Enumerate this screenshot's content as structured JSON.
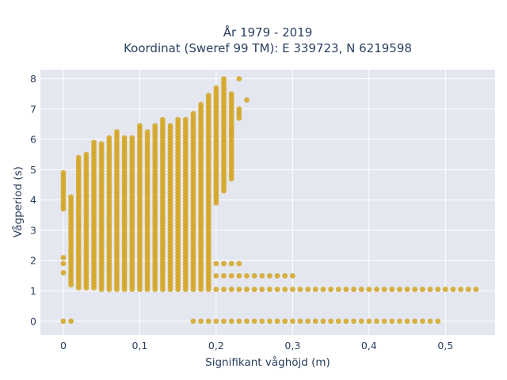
{
  "chart_data": {
    "type": "scatter",
    "title": "År 1979 - 2019",
    "subtitle": "Koordinat (Sweref 99 TM): E 339723, N 6219598",
    "xlabel": "Signifikant våghöjd (m)",
    "ylabel": "Vågperiod (s)",
    "xlim": [
      -0.03,
      0.565
    ],
    "ylim": [
      -0.45,
      8.3
    ],
    "x_ticks": [
      0,
      0.1,
      0.2,
      0.3,
      0.4,
      0.5
    ],
    "x_tick_labels": [
      "0",
      "0,1",
      "0,2",
      "0,3",
      "0,4",
      "0,5"
    ],
    "y_ticks": [
      0,
      1,
      2,
      3,
      4,
      5,
      6,
      7,
      8
    ],
    "y_tick_labels": [
      "0",
      "1",
      "2",
      "3",
      "4",
      "5",
      "6",
      "7",
      "8"
    ],
    "grid": true,
    "background_color": "#e5e7f0",
    "marker_color": "#d4a520",
    "x_step": 0.01,
    "columns": [
      {
        "x": 0.0,
        "y_min": 3.7,
        "y_max": 4.9,
        "extra": [
          0,
          1.6,
          1.9,
          2.1
        ]
      },
      {
        "x": 0.01,
        "y_min": 1.2,
        "y_max": 4.1,
        "extra": [
          0
        ]
      },
      {
        "x": 0.02,
        "y_min": 1.1,
        "y_max": 5.4
      },
      {
        "x": 0.03,
        "y_min": 1.1,
        "y_max": 5.5
      },
      {
        "x": 0.04,
        "y_min": 1.1,
        "y_max": 5.9
      },
      {
        "x": 0.05,
        "y_min": 1.05,
        "y_max": 5.9
      },
      {
        "x": 0.06,
        "y_min": 1.05,
        "y_max": 6.1
      },
      {
        "x": 0.07,
        "y_min": 1.05,
        "y_max": 6.3
      },
      {
        "x": 0.08,
        "y_min": 1.05,
        "y_max": 6.1
      },
      {
        "x": 0.09,
        "y_min": 1.05,
        "y_max": 6.1
      },
      {
        "x": 0.1,
        "y_min": 1.05,
        "y_max": 6.5
      },
      {
        "x": 0.11,
        "y_min": 1.05,
        "y_max": 6.3
      },
      {
        "x": 0.12,
        "y_min": 1.05,
        "y_max": 6.5
      },
      {
        "x": 0.13,
        "y_min": 1.05,
        "y_max": 6.7
      },
      {
        "x": 0.14,
        "y_min": 1.05,
        "y_max": 6.5
      },
      {
        "x": 0.15,
        "y_min": 1.05,
        "y_max": 6.7
      },
      {
        "x": 0.16,
        "y_min": 1.05,
        "y_max": 6.7
      },
      {
        "x": 0.17,
        "y_min": 1.05,
        "y_max": 6.9,
        "extra": [
          0
        ]
      },
      {
        "x": 0.18,
        "y_min": 1.05,
        "y_max": 7.2,
        "extra": [
          0
        ]
      },
      {
        "x": 0.19,
        "y_min": 1.05,
        "y_max": 7.5,
        "extra": [
          0
        ]
      },
      {
        "x": 0.2,
        "y_min": 3.9,
        "y_max": 7.7,
        "extra": [
          0,
          1.05,
          1.5,
          1.9
        ]
      },
      {
        "x": 0.21,
        "y_min": 4.3,
        "y_max": 8.0,
        "extra": [
          0,
          1.05,
          1.5,
          1.9
        ]
      },
      {
        "x": 0.22,
        "y_min": 4.7,
        "y_max": 7.5,
        "extra": [
          0,
          1.05,
          1.5,
          1.9,
          6.2
        ]
      },
      {
        "x": 0.23,
        "y_min": 6.7,
        "y_max": 7.0,
        "extra": [
          0,
          1.05,
          1.5,
          1.9,
          8.0
        ]
      },
      {
        "x": 0.24,
        "extra": [
          0,
          1.05,
          1.5,
          7.3
        ]
      },
      {
        "x": 0.25,
        "extra": [
          0,
          1.05,
          1.5
        ]
      },
      {
        "x": 0.26,
        "extra": [
          0,
          1.05,
          1.5
        ]
      },
      {
        "x": 0.27,
        "extra": [
          0,
          1.05,
          1.5
        ]
      },
      {
        "x": 0.28,
        "extra": [
          0,
          1.05,
          1.5
        ]
      },
      {
        "x": 0.29,
        "extra": [
          0,
          1.05,
          1.5
        ]
      },
      {
        "x": 0.3,
        "extra": [
          0,
          1.05,
          1.5
        ]
      },
      {
        "x": 0.31,
        "extra": [
          0,
          1.05
        ]
      },
      {
        "x": 0.32,
        "extra": [
          0,
          1.05
        ]
      },
      {
        "x": 0.33,
        "extra": [
          0,
          1.05
        ]
      },
      {
        "x": 0.34,
        "extra": [
          0,
          1.05
        ]
      },
      {
        "x": 0.35,
        "extra": [
          0,
          1.05
        ]
      },
      {
        "x": 0.36,
        "extra": [
          0,
          1.05
        ]
      },
      {
        "x": 0.37,
        "extra": [
          0,
          1.05
        ]
      },
      {
        "x": 0.38,
        "extra": [
          0,
          1.05
        ]
      },
      {
        "x": 0.39,
        "extra": [
          0,
          1.05
        ]
      },
      {
        "x": 0.4,
        "extra": [
          0,
          1.05
        ]
      },
      {
        "x": 0.41,
        "extra": [
          0,
          1.05
        ]
      },
      {
        "x": 0.42,
        "extra": [
          0,
          1.05
        ]
      },
      {
        "x": 0.43,
        "extra": [
          0,
          1.05
        ]
      },
      {
        "x": 0.44,
        "extra": [
          0,
          1.05
        ]
      },
      {
        "x": 0.45,
        "extra": [
          0,
          1.05
        ]
      },
      {
        "x": 0.46,
        "extra": [
          0,
          1.05
        ]
      },
      {
        "x": 0.47,
        "extra": [
          0,
          1.05
        ]
      },
      {
        "x": 0.48,
        "extra": [
          0,
          1.05
        ]
      },
      {
        "x": 0.49,
        "extra": [
          0,
          1.05
        ]
      },
      {
        "x": 0.5,
        "extra": [
          1.05
        ]
      },
      {
        "x": 0.51,
        "extra": [
          1.05
        ]
      },
      {
        "x": 0.52,
        "extra": [
          1.05
        ]
      },
      {
        "x": 0.53,
        "extra": [
          1.05
        ]
      },
      {
        "x": 0.54,
        "extra": [
          1.05
        ]
      }
    ],
    "y_step_within_column": 0.1
  }
}
